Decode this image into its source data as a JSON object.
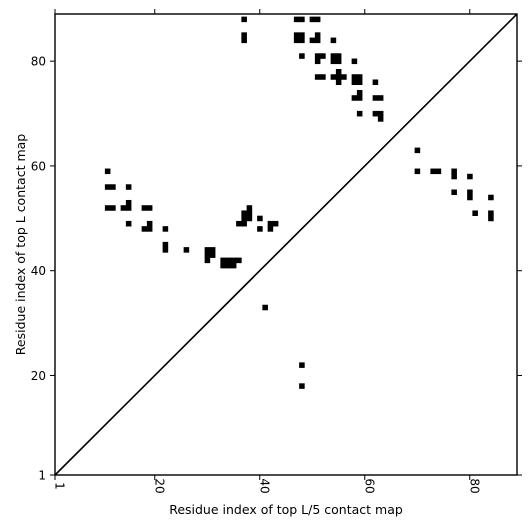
{
  "chart_data": {
    "type": "scatter",
    "title": "",
    "xlabel": "Residue index of top L/5 contact map",
    "ylabel": "Residue index of top L contact map",
    "xlim": [
      1,
      89
    ],
    "ylim": [
      1,
      89
    ],
    "x_ticks": [
      1,
      20,
      40,
      60,
      80
    ],
    "x_tick_labels": [
      "1",
      "20",
      "40",
      "60",
      "80"
    ],
    "y_ticks": [
      1,
      20,
      40,
      60,
      80
    ],
    "y_tick_labels": [
      "1",
      "20",
      "40",
      "60",
      "80"
    ],
    "grid": false,
    "marker": "square",
    "colors": {
      "marker": "#000000",
      "diagonal": "#000000",
      "axes": "#000000",
      "background": "#ffffff"
    },
    "diagonal": {
      "from": [
        1,
        1
      ],
      "to": [
        89,
        89
      ]
    },
    "series": [
      {
        "points_upper": [
          [
            37,
            88
          ],
          [
            47,
            88
          ],
          [
            48,
            88
          ],
          [
            50,
            88
          ],
          [
            51,
            88
          ],
          [
            37,
            85
          ],
          [
            37,
            84
          ],
          [
            47,
            85
          ],
          [
            48,
            85
          ],
          [
            47,
            84
          ],
          [
            48,
            84
          ],
          [
            50,
            84
          ],
          [
            51,
            85
          ],
          [
            51,
            84
          ],
          [
            54,
            84
          ],
          [
            48,
            81
          ],
          [
            51,
            81
          ],
          [
            52,
            81
          ],
          [
            51,
            80
          ],
          [
            54,
            81
          ],
          [
            55,
            81
          ],
          [
            54,
            80
          ],
          [
            55,
            80
          ],
          [
            58,
            80
          ],
          [
            51,
            77
          ],
          [
            52,
            77
          ],
          [
            54,
            77
          ],
          [
            55,
            77
          ],
          [
            56,
            77
          ],
          [
            55,
            78
          ],
          [
            55,
            76
          ],
          [
            58,
            77
          ],
          [
            59,
            77
          ],
          [
            58,
            76
          ],
          [
            59,
            76
          ],
          [
            62,
            76
          ],
          [
            58,
            73
          ],
          [
            59,
            73
          ],
          [
            59,
            74
          ],
          [
            62,
            73
          ],
          [
            63,
            73
          ],
          [
            59,
            70
          ],
          [
            62,
            70
          ],
          [
            63,
            70
          ],
          [
            63,
            69
          ]
        ],
        "points_lower": [
          [
            11,
            59
          ],
          [
            11,
            56
          ],
          [
            12,
            56
          ],
          [
            15,
            56
          ],
          [
            11,
            52
          ],
          [
            12,
            52
          ],
          [
            14,
            52
          ],
          [
            15,
            52
          ],
          [
            15,
            53
          ],
          [
            18,
            52
          ],
          [
            19,
            52
          ],
          [
            15,
            49
          ],
          [
            18,
            48
          ],
          [
            19,
            48
          ],
          [
            19,
            49
          ],
          [
            22,
            48
          ],
          [
            22,
            45
          ],
          [
            22,
            44
          ],
          [
            26,
            44
          ],
          [
            30,
            44
          ],
          [
            31,
            44
          ],
          [
            30,
            43
          ],
          [
            31,
            43
          ],
          [
            30,
            42
          ],
          [
            33,
            42
          ],
          [
            34,
            42
          ],
          [
            35,
            42
          ],
          [
            36,
            42
          ],
          [
            33,
            41
          ],
          [
            34,
            41
          ],
          [
            35,
            41
          ],
          [
            36,
            49
          ],
          [
            37,
            49
          ],
          [
            37,
            50
          ],
          [
            38,
            50
          ],
          [
            37,
            51
          ],
          [
            38,
            51
          ],
          [
            38,
            52
          ],
          [
            40,
            50
          ],
          [
            40,
            48
          ],
          [
            42,
            48
          ],
          [
            42,
            49
          ],
          [
            43,
            49
          ],
          [
            41,
            33
          ],
          [
            48,
            22
          ],
          [
            48,
            18
          ],
          [
            70,
            63
          ],
          [
            70,
            59
          ],
          [
            73,
            59
          ],
          [
            74,
            59
          ],
          [
            77,
            59
          ],
          [
            77,
            58
          ],
          [
            80,
            58
          ],
          [
            77,
            55
          ],
          [
            80,
            55
          ],
          [
            80,
            54
          ],
          [
            81,
            51
          ],
          [
            84,
            54
          ],
          [
            84,
            51
          ],
          [
            84,
            50
          ]
        ]
      }
    ]
  }
}
